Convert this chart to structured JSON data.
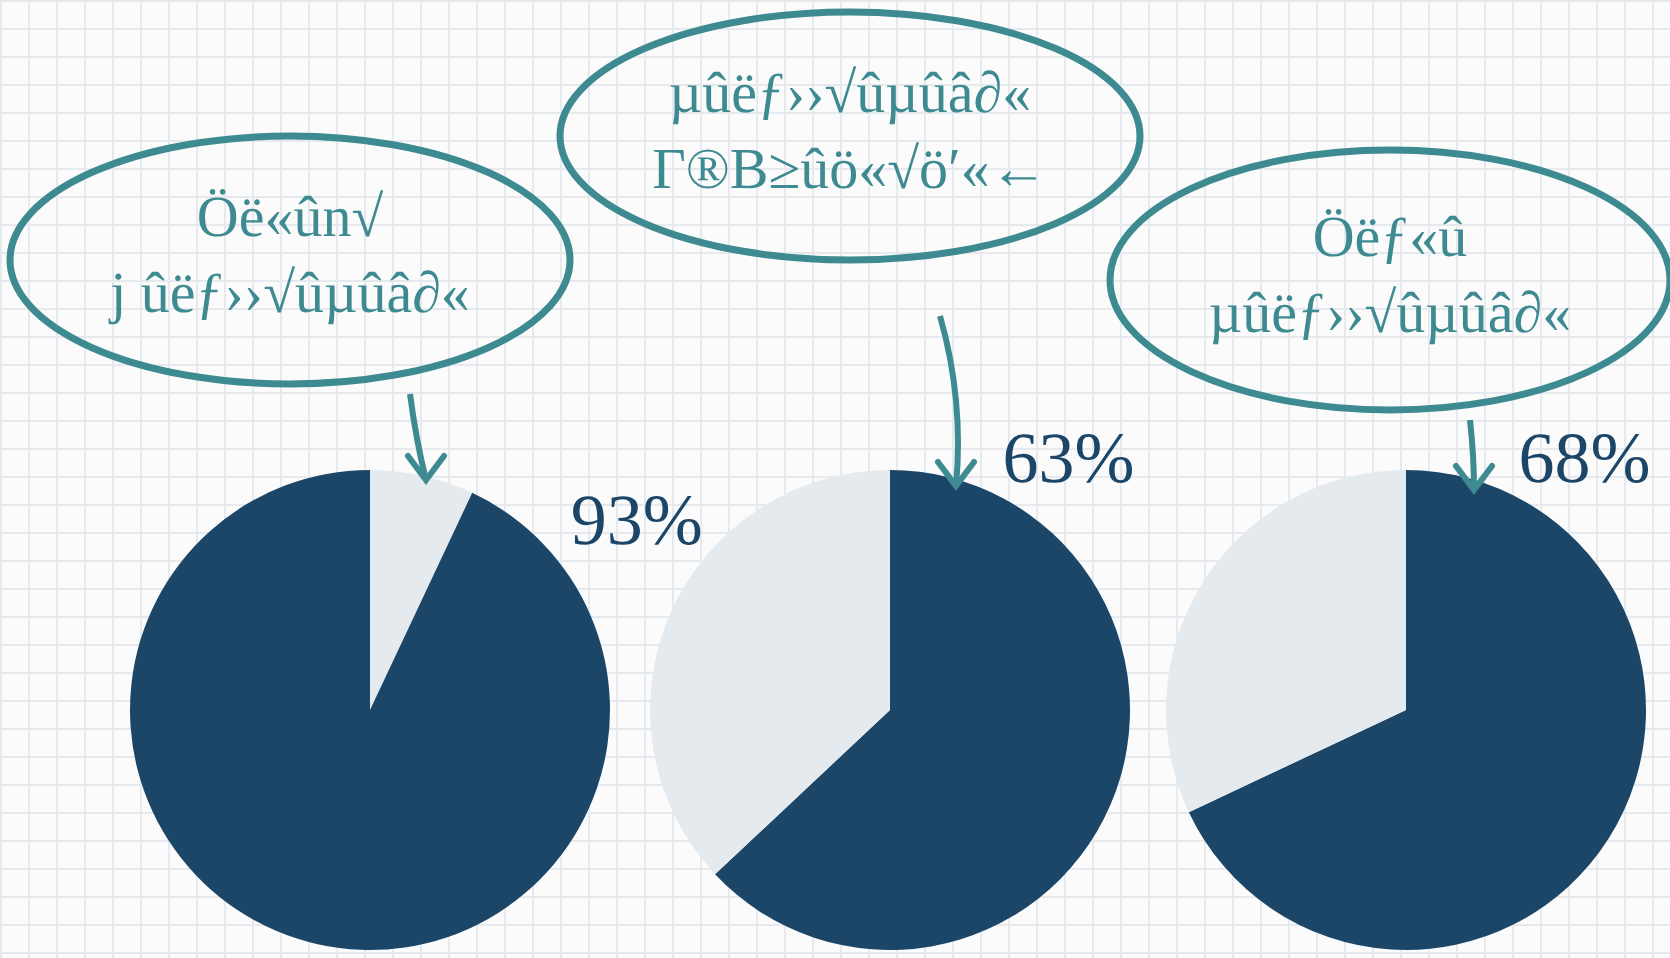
{
  "chart_data": [
    {
      "type": "pie",
      "title": "Öë«ûn√\nj ûëƒ››√ûµûâ∂«",
      "categories": [
        null,
        null
      ],
      "values": [
        7,
        93
      ],
      "colors": [
        "#e5eaee",
        "#1b4668"
      ],
      "value_labels": [
        null,
        "93%"
      ]
    },
    {
      "type": "pie",
      "title": "µûëƒ››√ûµûâ∂«\nΓ®B≥ûö«√ö′«←",
      "categories": [
        null,
        null
      ],
      "values": [
        63,
        37
      ],
      "colors": [
        "#1b4668",
        "#e5eaee"
      ],
      "value_labels": [
        "63%",
        null
      ]
    },
    {
      "type": "pie",
      "title": "Öëƒ«û\nµûëƒ››√ûµûâ∂«",
      "categories": [
        null,
        null
      ],
      "values": [
        68,
        32
      ],
      "colors": [
        "#1b4668",
        "#e5eaee"
      ],
      "value_labels": [
        "68%",
        null
      ]
    }
  ]
}
